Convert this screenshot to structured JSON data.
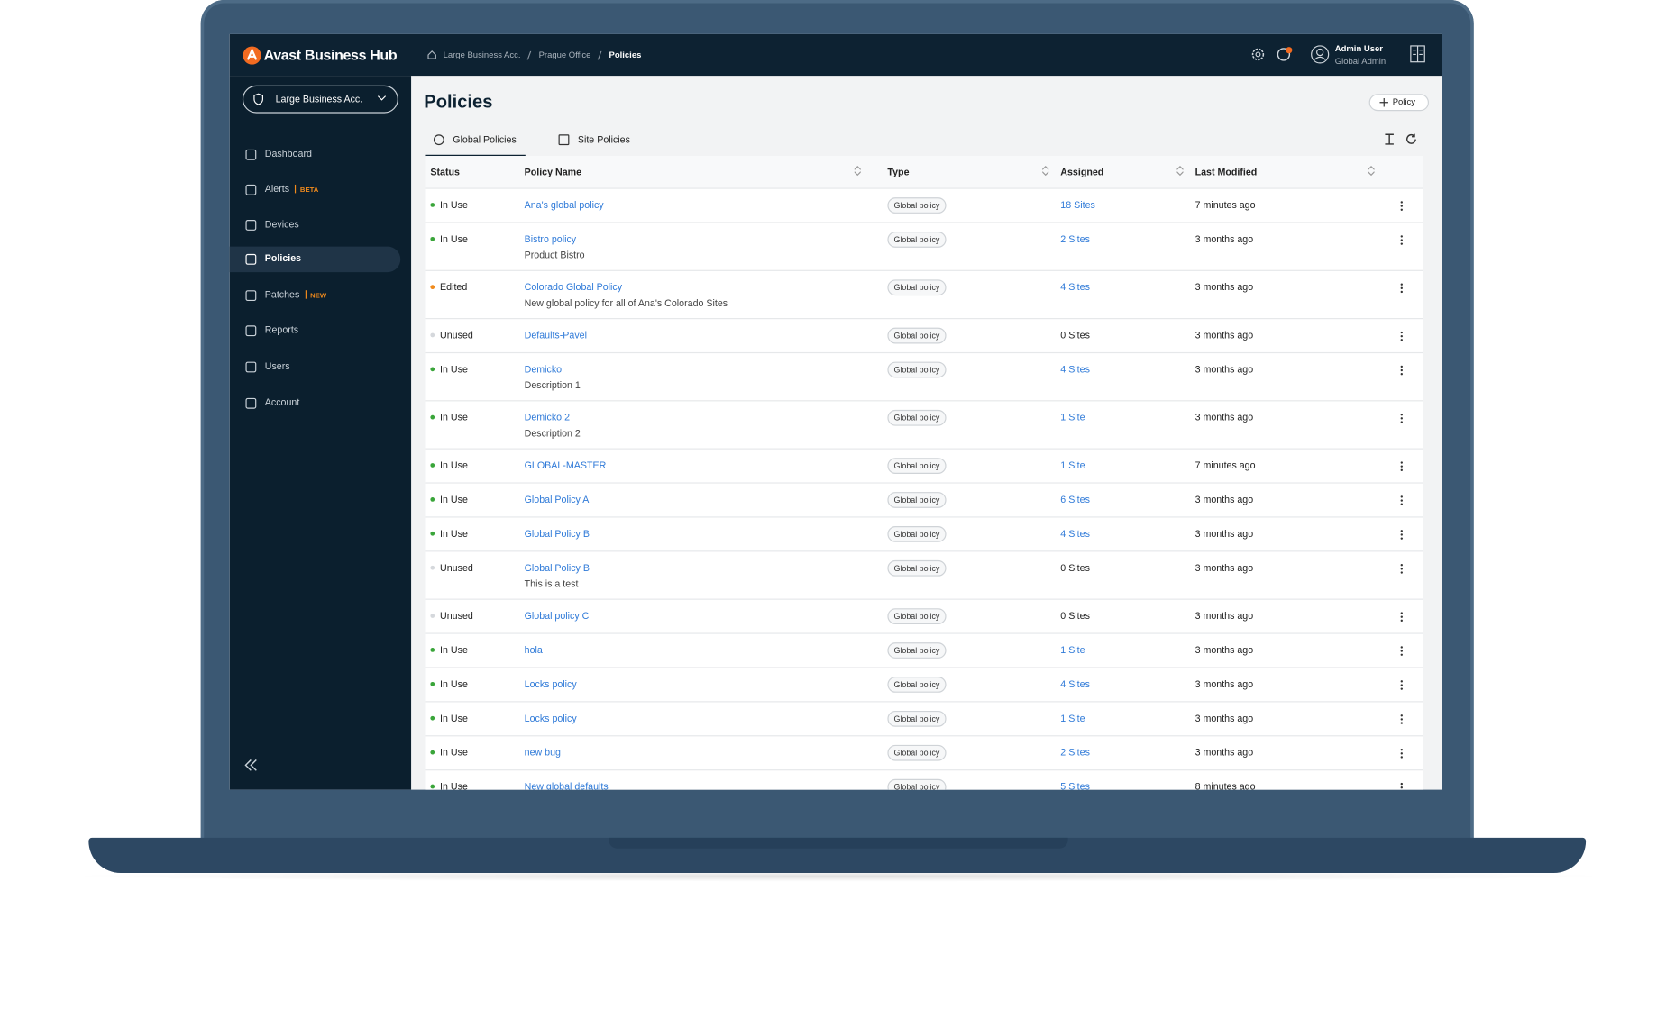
{
  "header": {
    "logo": "Avast Business Hub",
    "breadcrumbs": [
      "Large Business Acc.",
      "Prague Office",
      "Policies"
    ],
    "user_name": "Admin User",
    "user_role": "Global Admin"
  },
  "sidebar": {
    "account": "Large Business Acc.",
    "nav": [
      {
        "label": "Dashboard"
      },
      {
        "label": "Alerts",
        "badge": "BETA"
      },
      {
        "label": "Devices"
      },
      {
        "label": "Policies",
        "active": true
      },
      {
        "label": "Patches",
        "badge": "NEW"
      },
      {
        "label": "Reports"
      },
      {
        "label": "Users"
      },
      {
        "label": "Account"
      }
    ]
  },
  "page": {
    "title": "Policies",
    "add_button": "Policy",
    "tabs": [
      "Global Policies",
      "Site Policies"
    ]
  },
  "table": {
    "columns": [
      "Status",
      "Policy Name",
      "Type",
      "Assigned",
      "Last Modified"
    ],
    "rows": [
      {
        "status": "In Use",
        "dot": "#3aa53a",
        "name": "Ana's global policy",
        "type": "Global policy",
        "assigned": "18 Sites",
        "assigned_link": true,
        "modified": "7 minutes ago"
      },
      {
        "status": "In Use",
        "dot": "#3aa53a",
        "name": "Bistro policy",
        "description": "Product Bistro",
        "type": "Global policy",
        "assigned": "2 Sites",
        "assigned_link": true,
        "modified": "3 months ago"
      },
      {
        "status": "Edited",
        "dot": "#f08a1c",
        "name": "Colorado Global Policy",
        "description": "New global policy for all of Ana's Colorado Sites",
        "type": "Global policy",
        "assigned": "4 Sites",
        "assigned_link": true,
        "modified": "3 months ago"
      },
      {
        "status": "Unused",
        "dot": "#d5d8dc",
        "name": "Defaults-Pavel",
        "type": "Global policy",
        "assigned": "0 Sites",
        "assigned_link": false,
        "modified": "3 months ago"
      },
      {
        "status": "In Use",
        "dot": "#3aa53a",
        "name": "Demicko",
        "description": "Description 1",
        "type": "Global policy",
        "assigned": "4 Sites",
        "assigned_link": true,
        "modified": "3 months ago"
      },
      {
        "status": "In Use",
        "dot": "#3aa53a",
        "name": "Demicko 2",
        "description": "Description 2",
        "type": "Global policy",
        "assigned": "1 Site",
        "assigned_link": true,
        "modified": "3 months ago"
      },
      {
        "status": "In Use",
        "dot": "#3aa53a",
        "name": "GLOBAL-MASTER",
        "type": "Global policy",
        "assigned": "1 Site",
        "assigned_link": true,
        "modified": "7 minutes ago"
      },
      {
        "status": "In Use",
        "dot": "#3aa53a",
        "name": "Global Policy A",
        "type": "Global policy",
        "assigned": "6 Sites",
        "assigned_link": true,
        "modified": "3 months ago"
      },
      {
        "status": "In Use",
        "dot": "#3aa53a",
        "name": "Global Policy B",
        "type": "Global policy",
        "assigned": "4 Sites",
        "assigned_link": true,
        "modified": "3 months ago"
      },
      {
        "status": "Unused",
        "dot": "#d5d8dc",
        "name": "Global Policy B",
        "description": "This is a test",
        "type": "Global policy",
        "assigned": "0 Sites",
        "assigned_link": false,
        "modified": "3 months ago"
      },
      {
        "status": "Unused",
        "dot": "#d5d8dc",
        "name": "Global policy C",
        "type": "Global policy",
        "assigned": "0 Sites",
        "assigned_link": false,
        "modified": "3 months ago"
      },
      {
        "status": "In Use",
        "dot": "#3aa53a",
        "name": "hola",
        "type": "Global policy",
        "assigned": "1 Site",
        "assigned_link": true,
        "modified": "3 months ago"
      },
      {
        "status": "In Use",
        "dot": "#3aa53a",
        "name": "Locks policy",
        "type": "Global policy",
        "assigned": "4 Sites",
        "assigned_link": true,
        "modified": "3 months ago"
      },
      {
        "status": "In Use",
        "dot": "#3aa53a",
        "name": "Locks policy",
        "type": "Global policy",
        "assigned": "1 Site",
        "assigned_link": true,
        "modified": "3 months ago"
      },
      {
        "status": "In Use",
        "dot": "#3aa53a",
        "name": "new bug",
        "type": "Global policy",
        "assigned": "2 Sites",
        "assigned_link": true,
        "modified": "3 months ago"
      },
      {
        "status": "In Use",
        "dot": "#3aa53a",
        "name": "New global defaults",
        "type": "Global policy",
        "assigned": "5 Sites",
        "assigned_link": true,
        "modified": "8 minutes ago"
      }
    ]
  }
}
